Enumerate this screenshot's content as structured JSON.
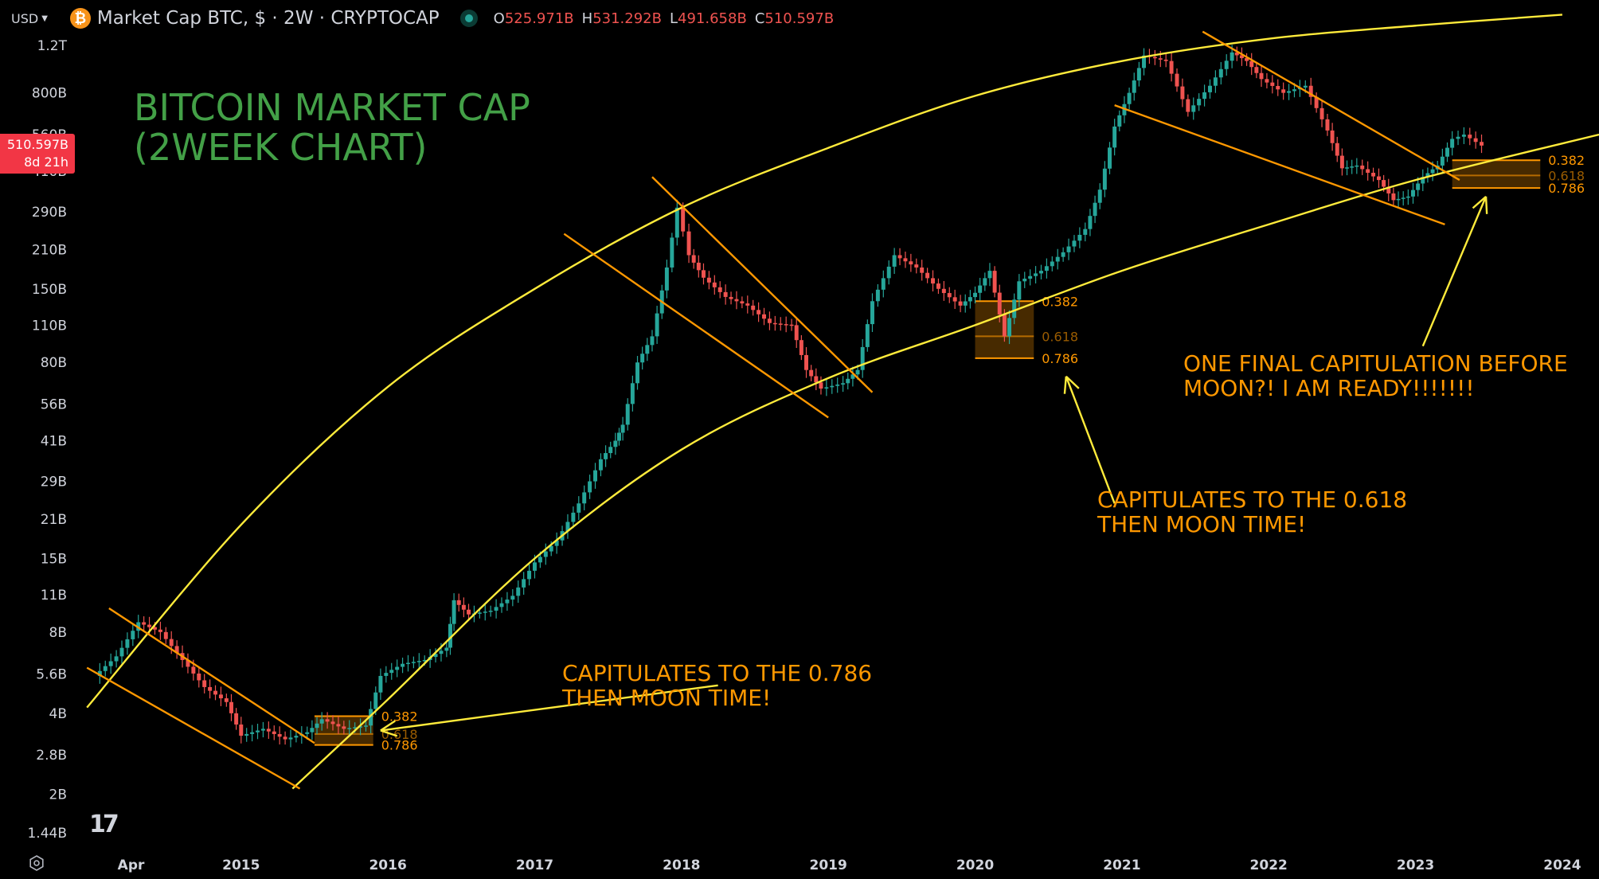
{
  "header": {
    "currency": "USD",
    "symbol_title": "Market Cap BTC, $ · 2W · CRYPTOCAP",
    "ohlc": [
      {
        "key": "O",
        "value": "525.971B"
      },
      {
        "key": "H",
        "value": "531.292B"
      },
      {
        "key": "L",
        "value": "491.658B"
      },
      {
        "key": "C",
        "value": "510.597B"
      }
    ]
  },
  "price_badge": {
    "value": "510.597B",
    "countdown": "8d 21h"
  },
  "colors": {
    "background": "#000000",
    "up": "#26a69a",
    "down": "#ef5350",
    "arc": "#ffeb3b",
    "channel": "#ff9800",
    "title": "#43a047",
    "annotation": "#ff9800"
  },
  "chart_data": {
    "type": "candlestick",
    "title": "BITCOIN MARKET CAP\n(2WEEK CHART)",
    "y_scale": "log",
    "y_ticks": [
      "1.2T",
      "800B",
      "560B",
      "410B",
      "290B",
      "210B",
      "150B",
      "110B",
      "80B",
      "56B",
      "41B",
      "29B",
      "21B",
      "15B",
      "11B",
      "8B",
      "5.6B",
      "4B",
      "2.8B",
      "2B",
      "1.44B"
    ],
    "y_tick_values": [
      1200,
      800,
      560,
      410,
      290,
      210,
      150,
      110,
      80,
      56,
      41,
      29,
      21,
      15,
      11,
      8,
      5.6,
      4,
      2.8,
      2,
      1.44
    ],
    "y_unit": "billion USD",
    "x_ticks": [
      "Apr",
      "2015",
      "2016",
      "2017",
      "2018",
      "2019",
      "2020",
      "2021",
      "2022",
      "2023",
      "2024"
    ],
    "x_tick_values": [
      2014.25,
      2015,
      2016,
      2017,
      2018,
      2019,
      2020,
      2021,
      2022,
      2023,
      2024
    ],
    "x_range": [
      2013.9,
      2024.25
    ],
    "close_path": [
      [
        2014.0,
        5.5
      ],
      [
        2014.15,
        6.5
      ],
      [
        2014.3,
        8.7
      ],
      [
        2014.45,
        8.0
      ],
      [
        2014.6,
        6.3
      ],
      [
        2014.75,
        5.0
      ],
      [
        2014.9,
        4.4
      ],
      [
        2015.0,
        3.3
      ],
      [
        2015.15,
        3.5
      ],
      [
        2015.3,
        3.2
      ],
      [
        2015.45,
        3.4
      ],
      [
        2015.55,
        3.8
      ],
      [
        2015.7,
        3.5
      ],
      [
        2015.85,
        3.6
      ],
      [
        2015.95,
        5.5
      ],
      [
        2016.1,
        6.1
      ],
      [
        2016.25,
        6.3
      ],
      [
        2016.4,
        7.0
      ],
      [
        2016.45,
        10.5
      ],
      [
        2016.55,
        9.3
      ],
      [
        2016.7,
        9.6
      ],
      [
        2016.85,
        10.9
      ],
      [
        2017.0,
        14.5
      ],
      [
        2017.15,
        17.5
      ],
      [
        2017.3,
        24
      ],
      [
        2017.45,
        35
      ],
      [
        2017.55,
        41
      ],
      [
        2017.6,
        47
      ],
      [
        2017.7,
        80
      ],
      [
        2017.8,
        100
      ],
      [
        2017.9,
        180
      ],
      [
        2017.97,
        300
      ],
      [
        2018.05,
        200
      ],
      [
        2018.15,
        165
      ],
      [
        2018.3,
        140
      ],
      [
        2018.45,
        130
      ],
      [
        2018.6,
        112
      ],
      [
        2018.75,
        110
      ],
      [
        2018.85,
        75
      ],
      [
        2018.95,
        64
      ],
      [
        2019.1,
        67
      ],
      [
        2019.2,
        75
      ],
      [
        2019.3,
        135
      ],
      [
        2019.45,
        200
      ],
      [
        2019.6,
        180
      ],
      [
        2019.75,
        150
      ],
      [
        2019.9,
        130
      ],
      [
        2020.0,
        145
      ],
      [
        2020.1,
        175
      ],
      [
        2020.2,
        100
      ],
      [
        2020.3,
        160
      ],
      [
        2020.45,
        175
      ],
      [
        2020.6,
        205
      ],
      [
        2020.75,
        250
      ],
      [
        2020.85,
        350
      ],
      [
        2020.95,
        600
      ],
      [
        2021.05,
        800
      ],
      [
        2021.15,
        1100
      ],
      [
        2021.3,
        1050
      ],
      [
        2021.45,
        680
      ],
      [
        2021.6,
        850
      ],
      [
        2021.75,
        1130
      ],
      [
        2021.85,
        1050
      ],
      [
        2021.95,
        900
      ],
      [
        2022.1,
        800
      ],
      [
        2022.25,
        850
      ],
      [
        2022.4,
        580
      ],
      [
        2022.5,
        420
      ],
      [
        2022.6,
        430
      ],
      [
        2022.75,
        380
      ],
      [
        2022.85,
        320
      ],
      [
        2022.95,
        330
      ],
      [
        2023.05,
        390
      ],
      [
        2023.15,
        430
      ],
      [
        2023.25,
        540
      ],
      [
        2023.33,
        560
      ],
      [
        2023.45,
        510
      ]
    ],
    "arcs": [
      {
        "name": "upper",
        "points": [
          [
            2013.95,
            4.2
          ],
          [
            2015.0,
            20
          ],
          [
            2016.0,
            65
          ],
          [
            2017.0,
            150
          ],
          [
            2018.0,
            300
          ],
          [
            2019.0,
            500
          ],
          [
            2020.0,
            780
          ],
          [
            2021.0,
            1050
          ],
          [
            2022.0,
            1270
          ],
          [
            2023.0,
            1420
          ],
          [
            2024.0,
            1560
          ]
        ]
      },
      {
        "name": "lower",
        "points": [
          [
            2015.35,
            2.1
          ],
          [
            2016.0,
            4.5
          ],
          [
            2017.0,
            15
          ],
          [
            2018.0,
            38
          ],
          [
            2019.0,
            70
          ],
          [
            2020.0,
            110
          ],
          [
            2021.0,
            175
          ],
          [
            2022.0,
            260
          ],
          [
            2023.0,
            380
          ],
          [
            2024.25,
            560
          ]
        ]
      }
    ],
    "channels": [
      {
        "a": [
          [
            2013.95,
            5.9
          ],
          [
            2015.4,
            2.1
          ]
        ],
        "b": [
          [
            2014.1,
            9.8
          ],
          [
            2015.5,
            3.1
          ]
        ]
      },
      {
        "a": [
          [
            2017.2,
            240
          ],
          [
            2019.0,
            50
          ]
        ],
        "b": [
          [
            2017.8,
            390
          ],
          [
            2019.3,
            62
          ]
        ]
      },
      {
        "a": [
          [
            2020.95,
            720
          ],
          [
            2023.2,
            260
          ]
        ],
        "b": [
          [
            2021.55,
            1350
          ],
          [
            2023.3,
            380
          ]
        ]
      }
    ],
    "fib_boxes": [
      {
        "x": [
          2015.5,
          2015.9
        ],
        "levels": [
          {
            "label": "0.382",
            "value": 3.9
          },
          {
            "label": "0.618",
            "value": 3.35
          },
          {
            "label": "0.786",
            "value": 3.05
          }
        ]
      },
      {
        "x": [
          2020.0,
          2020.4
        ],
        "levels": [
          {
            "label": "0.382",
            "value": 135
          },
          {
            "label": "0.618",
            "value": 100
          },
          {
            "label": "0.786",
            "value": 83
          }
        ]
      },
      {
        "x": [
          2023.25,
          2023.85
        ],
        "levels": [
          {
            "label": "0.382",
            "value": 450
          },
          {
            "label": "0.618",
            "value": 395
          },
          {
            "label": "0.786",
            "value": 355
          }
        ]
      }
    ],
    "annotations": [
      {
        "line1": "CAPITULATES TO THE 0.786",
        "line2": "THEN MOON TIME!"
      },
      {
        "line1": "CAPITULATES TO THE 0.618",
        "line2": "THEN MOON TIME!"
      },
      {
        "line1": "ONE FINAL CAPITULATION BEFORE",
        "line2": "MOON?! I AM READY!!!!!!!"
      }
    ]
  }
}
